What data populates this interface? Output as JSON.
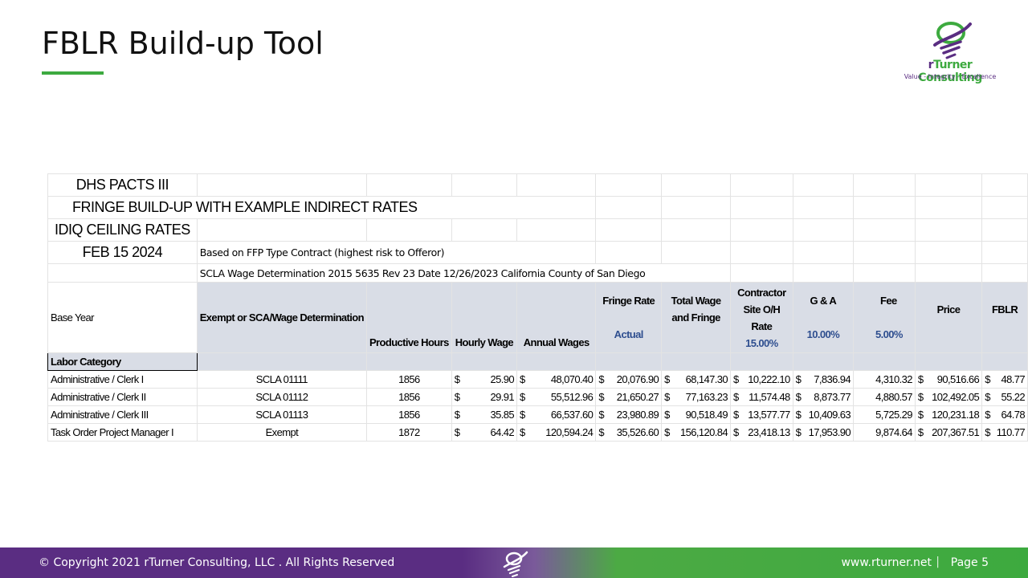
{
  "header": {
    "title": "FBLR Build-up Tool"
  },
  "logo": {
    "name_r": "r",
    "name_rest": "Turner Consulting",
    "tagline": "Value - Integrity - Excellence"
  },
  "sheet": {
    "title_lines": [
      "DHS PACTS III",
      "FRINGE BUILD-UP WITH EXAMPLE INDIRECT RATES",
      "IDIQ CEILING RATES",
      "FEB 15 2024"
    ],
    "note_contract": "Based on FFP Type Contract (highest risk to Offeror)",
    "note_scla": "SCLA Wage Determination 2015 5635 Rev 23 Date 12/26/2023 California County of San Diego",
    "base_year": "Base Year",
    "headers": {
      "exempt": "Exempt or SCA/Wage Determination",
      "hours": "Productive Hours",
      "hourly": "Hourly Wage",
      "annual": "Annual Wages",
      "fringe": "Fringe Rate",
      "fringe_sub": "Actual",
      "total": "Total Wage and Fringe",
      "oh": "Contractor Site O/H Rate",
      "oh_rate": "15.00%",
      "ga": "G & A",
      "ga_rate": "10.00%",
      "fee": "Fee",
      "fee_rate": "5.00%",
      "price": "Price",
      "fblr": "FBLR"
    },
    "labor_category": "Labor Category",
    "currency": "$",
    "rows": [
      {
        "cat": "Administrative / Clerk I",
        "code": "SCLA 01111",
        "hours": "1856",
        "hourly": "25.90",
        "annual": "48,070.40",
        "fringe": "20,076.90",
        "total": "68,147.30",
        "oh": "10,222.10",
        "ga": "7,836.94",
        "fee": "4,310.32",
        "price": "90,516.66",
        "fblr": "48.77"
      },
      {
        "cat": "Administrative / Clerk II",
        "code": "SCLA 01112",
        "hours": "1856",
        "hourly": "29.91",
        "annual": "55,512.96",
        "fringe": "21,650.27",
        "total": "77,163.23",
        "oh": "11,574.48",
        "ga": "8,873.77",
        "fee": "4,880.57",
        "price": "102,492.05",
        "fblr": "55.22"
      },
      {
        "cat": "Administrative / Clerk III",
        "code": "SCLA 01113",
        "hours": "1856",
        "hourly": "35.85",
        "annual": "66,537.60",
        "fringe": "23,980.89",
        "total": "90,518.49",
        "oh": "13,577.77",
        "ga": "10,409.63",
        "fee": "5,725.29",
        "price": "120,231.18",
        "fblr": "64.78"
      },
      {
        "cat": "Task Order Project Manager I",
        "code": "Exempt",
        "hours": "1872",
        "hourly": "64.42",
        "annual": "120,594.24",
        "fringe": "35,526.60",
        "total": "156,120.84",
        "oh": "23,418.13",
        "ga": "17,953.90",
        "fee": "9,874.64",
        "price": "207,367.51",
        "fblr": "110.77"
      }
    ]
  },
  "footer": {
    "copyright": "© Copyright 2021 rTurner Consulting, LLC . All Rights Reserved",
    "website": "www.rturner.net",
    "separator": "|",
    "page": "Page  5"
  },
  "colors": {
    "purple": "#5a2d82",
    "green": "#3daa3f",
    "header_fill": "#d9dde6",
    "rate_blue": "#2e4e8f"
  },
  "icons": [
    "lightbulb-logo-icon"
  ]
}
